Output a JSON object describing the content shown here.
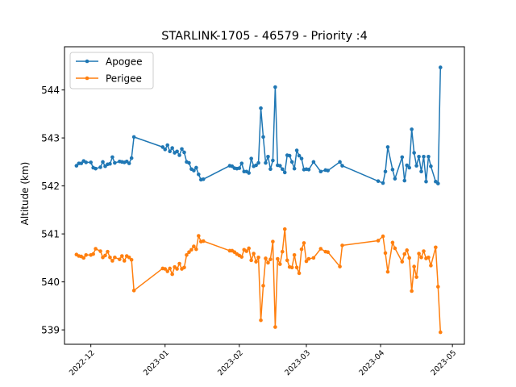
{
  "chart_data": {
    "type": "line",
    "title": "STARLINK-1705 - 46579 - Priority :4",
    "xlabel": "",
    "ylabel": "Altitude (km)",
    "x_type": "date",
    "xlim": [
      "2022-11-20",
      "2023-05-06"
    ],
    "ylim": [
      538.7,
      544.9
    ],
    "yticks": [
      539,
      540,
      541,
      542,
      543,
      544
    ],
    "xticks": [
      "2022-12",
      "2023-01",
      "2023-02",
      "2023-03",
      "2023-04",
      "2023-05"
    ],
    "grid": false,
    "legend": "top-left",
    "series": [
      {
        "name": "Apogee",
        "color": "#1f77b4",
        "points": [
          [
            "2022-11-25",
            542.42
          ],
          [
            "2022-11-26",
            542.47
          ],
          [
            "2022-11-27",
            542.47
          ],
          [
            "2022-11-28",
            542.52
          ],
          [
            "2022-11-29",
            542.49
          ],
          [
            "2022-12-01",
            542.49
          ],
          [
            "2022-12-02",
            542.38
          ],
          [
            "2022-12-03",
            542.36
          ],
          [
            "2022-12-05",
            542.39
          ],
          [
            "2022-12-06",
            542.5
          ],
          [
            "2022-12-07",
            542.41
          ],
          [
            "2022-12-08",
            542.45
          ],
          [
            "2022-12-09",
            542.46
          ],
          [
            "2022-12-10",
            542.6
          ],
          [
            "2022-12-11",
            542.48
          ],
          [
            "2022-12-13",
            542.51
          ],
          [
            "2022-12-14",
            542.5
          ],
          [
            "2022-12-15",
            542.49
          ],
          [
            "2022-12-16",
            542.51
          ],
          [
            "2022-12-17",
            542.47
          ],
          [
            "2022-12-18",
            542.58
          ],
          [
            "2022-12-19",
            543.02
          ],
          [
            "2022-12-31",
            542.81
          ],
          [
            "2023-01-01",
            542.76
          ],
          [
            "2023-01-02",
            542.85
          ],
          [
            "2023-01-03",
            542.72
          ],
          [
            "2023-01-04",
            542.79
          ],
          [
            "2023-01-05",
            542.69
          ],
          [
            "2023-01-06",
            542.72
          ],
          [
            "2023-01-07",
            542.64
          ],
          [
            "2023-01-08",
            542.77
          ],
          [
            "2023-01-09",
            542.7
          ],
          [
            "2023-01-10",
            542.5
          ],
          [
            "2023-01-11",
            542.48
          ],
          [
            "2023-01-12",
            542.35
          ],
          [
            "2023-01-13",
            542.32
          ],
          [
            "2023-01-14",
            542.38
          ],
          [
            "2023-01-15",
            542.24
          ],
          [
            "2023-01-16",
            542.13
          ],
          [
            "2023-01-17",
            542.14
          ],
          [
            "2023-01-28",
            542.42
          ],
          [
            "2023-01-29",
            542.41
          ],
          [
            "2023-01-30",
            542.37
          ],
          [
            "2023-01-31",
            542.36
          ],
          [
            "2023-02-01",
            542.37
          ],
          [
            "2023-02-02",
            542.47
          ],
          [
            "2023-02-03",
            542.3
          ],
          [
            "2023-02-04",
            542.3
          ],
          [
            "2023-02-05",
            542.27
          ],
          [
            "2023-02-06",
            542.57
          ],
          [
            "2023-02-07",
            542.41
          ],
          [
            "2023-02-08",
            542.43
          ],
          [
            "2023-02-09",
            542.48
          ],
          [
            "2023-02-10",
            543.62
          ],
          [
            "2023-02-11",
            543.02
          ],
          [
            "2023-02-12",
            542.48
          ],
          [
            "2023-02-13",
            542.61
          ],
          [
            "2023-02-14",
            542.35
          ],
          [
            "2023-02-15",
            542.53
          ],
          [
            "2023-02-16",
            544.06
          ],
          [
            "2023-02-17",
            542.43
          ],
          [
            "2023-02-18",
            542.42
          ],
          [
            "2023-02-19",
            542.35
          ],
          [
            "2023-02-20",
            542.28
          ],
          [
            "2023-02-21",
            542.64
          ],
          [
            "2023-02-22",
            542.63
          ],
          [
            "2023-02-23",
            542.5
          ],
          [
            "2023-02-24",
            542.36
          ],
          [
            "2023-02-25",
            542.74
          ],
          [
            "2023-02-26",
            542.63
          ],
          [
            "2023-02-27",
            542.57
          ],
          [
            "2023-02-28",
            542.34
          ],
          [
            "2023-03-01",
            542.35
          ],
          [
            "2023-03-02",
            542.34
          ],
          [
            "2023-03-04",
            542.5
          ],
          [
            "2023-03-07",
            542.3
          ],
          [
            "2023-03-09",
            542.33
          ],
          [
            "2023-03-10",
            542.32
          ],
          [
            "2023-03-15",
            542.5
          ],
          [
            "2023-03-16",
            542.42
          ],
          [
            "2023-03-31",
            542.1
          ],
          [
            "2023-04-02",
            542.06
          ],
          [
            "2023-04-03",
            542.3
          ],
          [
            "2023-04-04",
            542.81
          ],
          [
            "2023-04-06",
            542.34
          ],
          [
            "2023-04-07",
            542.15
          ],
          [
            "2023-04-10",
            542.6
          ],
          [
            "2023-04-11",
            542.11
          ],
          [
            "2023-04-12",
            542.43
          ],
          [
            "2023-04-13",
            542.38
          ],
          [
            "2023-04-14",
            543.18
          ],
          [
            "2023-04-15",
            542.69
          ],
          [
            "2023-04-16",
            542.42
          ],
          [
            "2023-04-17",
            542.61
          ],
          [
            "2023-04-18",
            542.3
          ],
          [
            "2023-04-19",
            542.61
          ],
          [
            "2023-04-20",
            542.09
          ],
          [
            "2023-04-21",
            542.61
          ],
          [
            "2023-04-22",
            542.41
          ],
          [
            "2023-04-24",
            542.09
          ],
          [
            "2023-04-25",
            542.05
          ],
          [
            "2023-04-26",
            544.47
          ]
        ]
      },
      {
        "name": "Perigee",
        "color": "#ff7f0e",
        "points": [
          [
            "2022-11-25",
            540.57
          ],
          [
            "2022-11-26",
            540.54
          ],
          [
            "2022-11-27",
            540.53
          ],
          [
            "2022-11-28",
            540.5
          ],
          [
            "2022-11-29",
            540.56
          ],
          [
            "2022-12-01",
            540.56
          ],
          [
            "2022-12-02",
            540.58
          ],
          [
            "2022-12-03",
            540.69
          ],
          [
            "2022-12-05",
            540.64
          ],
          [
            "2022-12-06",
            540.51
          ],
          [
            "2022-12-07",
            540.55
          ],
          [
            "2022-12-08",
            540.63
          ],
          [
            "2022-12-09",
            540.51
          ],
          [
            "2022-12-10",
            540.44
          ],
          [
            "2022-12-11",
            540.51
          ],
          [
            "2022-12-13",
            540.47
          ],
          [
            "2022-12-14",
            540.54
          ],
          [
            "2022-12-15",
            540.44
          ],
          [
            "2022-12-16",
            540.54
          ],
          [
            "2022-12-17",
            540.51
          ],
          [
            "2022-12-18",
            540.46
          ],
          [
            "2022-12-19",
            539.82
          ],
          [
            "2022-12-31",
            540.28
          ],
          [
            "2023-01-01",
            540.27
          ],
          [
            "2023-01-02",
            540.22
          ],
          [
            "2023-01-03",
            540.28
          ],
          [
            "2023-01-04",
            540.16
          ],
          [
            "2023-01-05",
            540.31
          ],
          [
            "2023-01-06",
            540.27
          ],
          [
            "2023-01-07",
            540.38
          ],
          [
            "2023-01-08",
            540.27
          ],
          [
            "2023-01-09",
            540.3
          ],
          [
            "2023-01-10",
            540.56
          ],
          [
            "2023-01-11",
            540.62
          ],
          [
            "2023-01-12",
            540.67
          ],
          [
            "2023-01-13",
            540.74
          ],
          [
            "2023-01-14",
            540.68
          ],
          [
            "2023-01-15",
            540.96
          ],
          [
            "2023-01-16",
            540.84
          ],
          [
            "2023-01-17",
            540.85
          ],
          [
            "2023-01-28",
            540.65
          ],
          [
            "2023-01-29",
            540.65
          ],
          [
            "2023-01-30",
            540.62
          ],
          [
            "2023-01-31",
            540.58
          ],
          [
            "2023-02-01",
            540.55
          ],
          [
            "2023-02-02",
            540.52
          ],
          [
            "2023-02-03",
            540.67
          ],
          [
            "2023-02-04",
            540.64
          ],
          [
            "2023-02-05",
            540.7
          ],
          [
            "2023-02-06",
            540.45
          ],
          [
            "2023-02-07",
            540.59
          ],
          [
            "2023-02-08",
            540.42
          ],
          [
            "2023-02-09",
            540.51
          ],
          [
            "2023-02-10",
            539.2
          ],
          [
            "2023-02-11",
            539.92
          ],
          [
            "2023-02-12",
            540.49
          ],
          [
            "2023-02-13",
            540.4
          ],
          [
            "2023-02-14",
            540.47
          ],
          [
            "2023-02-15",
            540.84
          ],
          [
            "2023-02-16",
            539.06
          ],
          [
            "2023-02-17",
            540.48
          ],
          [
            "2023-02-18",
            540.37
          ],
          [
            "2023-02-19",
            540.63
          ],
          [
            "2023-02-20",
            541.1
          ],
          [
            "2023-02-21",
            540.45
          ],
          [
            "2023-02-22",
            540.31
          ],
          [
            "2023-02-23",
            540.3
          ],
          [
            "2023-02-24",
            540.56
          ],
          [
            "2023-02-25",
            540.3
          ],
          [
            "2023-02-26",
            540.18
          ],
          [
            "2023-02-27",
            540.68
          ],
          [
            "2023-02-28",
            540.81
          ],
          [
            "2023-03-01",
            540.43
          ],
          [
            "2023-03-02",
            540.48
          ],
          [
            "2023-03-04",
            540.5
          ],
          [
            "2023-03-07",
            540.69
          ],
          [
            "2023-03-09",
            540.63
          ],
          [
            "2023-03-10",
            540.62
          ],
          [
            "2023-03-15",
            540.32
          ],
          [
            "2023-03-16",
            540.76
          ],
          [
            "2023-03-31",
            540.86
          ],
          [
            "2023-04-02",
            540.95
          ],
          [
            "2023-04-03",
            540.6
          ],
          [
            "2023-04-04",
            540.21
          ],
          [
            "2023-04-06",
            540.82
          ],
          [
            "2023-04-07",
            540.7
          ],
          [
            "2023-04-10",
            540.42
          ],
          [
            "2023-04-11",
            540.58
          ],
          [
            "2023-04-12",
            540.66
          ],
          [
            "2023-04-13",
            540.5
          ],
          [
            "2023-04-14",
            539.81
          ],
          [
            "2023-04-15",
            540.32
          ],
          [
            "2023-04-16",
            540.1
          ],
          [
            "2023-04-17",
            540.59
          ],
          [
            "2023-04-18",
            540.51
          ],
          [
            "2023-04-19",
            540.64
          ],
          [
            "2023-04-20",
            540.49
          ],
          [
            "2023-04-21",
            540.51
          ],
          [
            "2023-04-22",
            540.34
          ],
          [
            "2023-04-24",
            540.72
          ],
          [
            "2023-04-25",
            539.9
          ],
          [
            "2023-04-26",
            538.95
          ]
        ]
      }
    ]
  }
}
